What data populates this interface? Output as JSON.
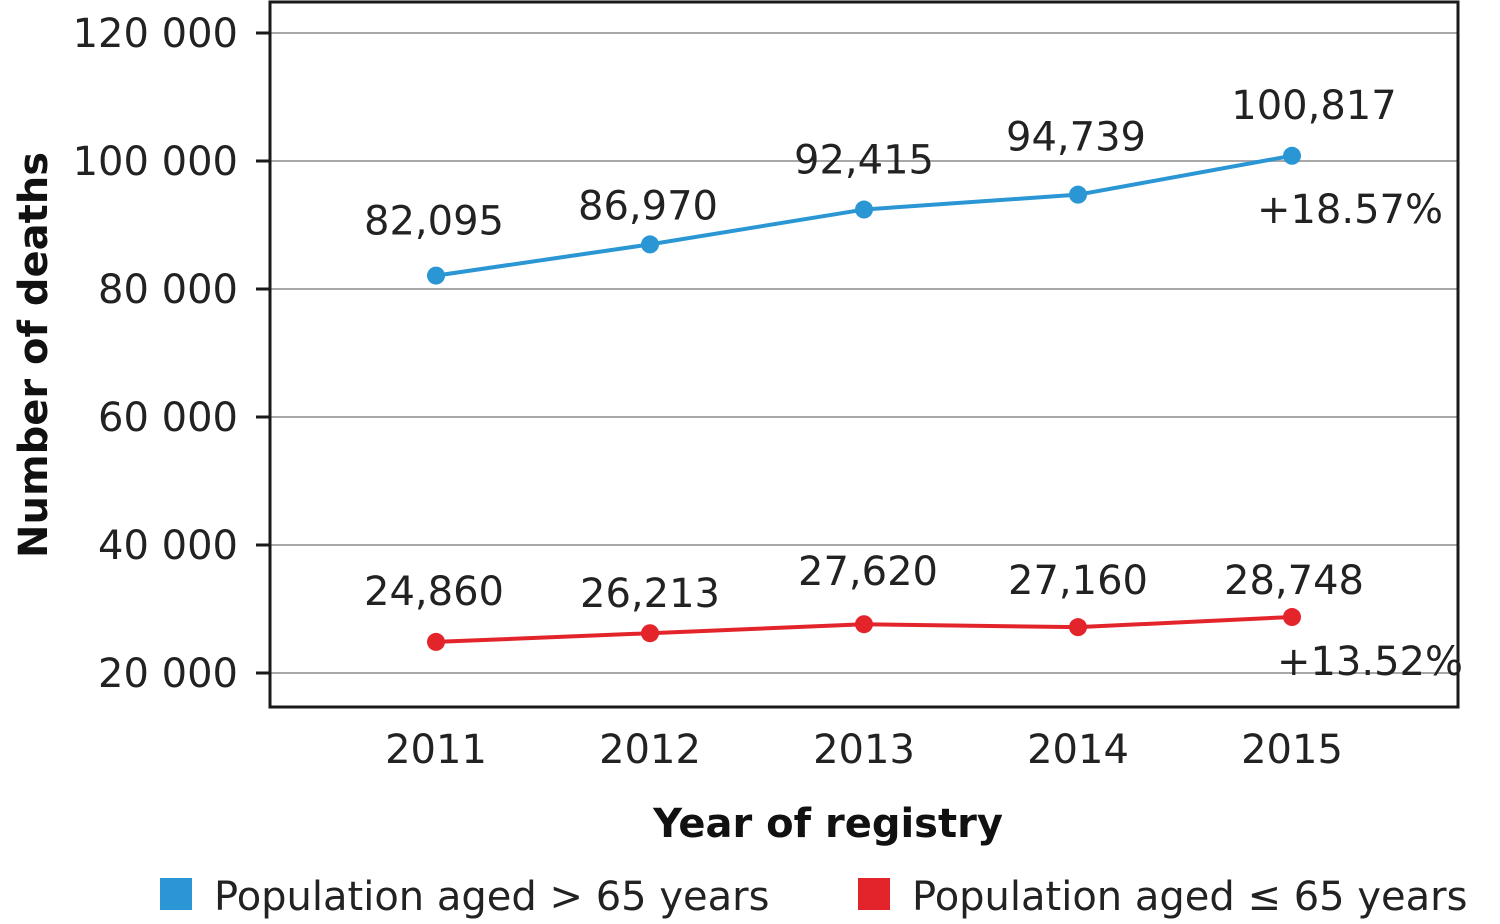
{
  "chart_data": {
    "type": "line",
    "title": "",
    "xlabel": "Year of registry",
    "ylabel": "Number of deaths",
    "categories": [
      "2011",
      "2012",
      "2013",
      "2014",
      "2015"
    ],
    "ylim": [
      15000,
      120000
    ],
    "yticks": [
      20000,
      40000,
      60000,
      80000,
      100000,
      120000
    ],
    "ytick_labels": [
      "20 000",
      "40 000",
      "60 000",
      "80 000",
      "100 000",
      "120 000"
    ],
    "grid": true,
    "legend_position": "bottom",
    "series": [
      {
        "name": "Population aged > 65 years",
        "color": "#2a97d4",
        "values": [
          82095,
          86970,
          92415,
          94739,
          100817
        ],
        "labels": [
          "82,095",
          "86,970",
          "92,415",
          "94,739",
          "100,817"
        ],
        "change_label": "+18.57%"
      },
      {
        "name": "Population aged ≤ 65 years",
        "color": "#e3242b",
        "values": [
          24860,
          26213,
          27620,
          27160,
          28748
        ],
        "labels": [
          "24,860",
          "26,213",
          "27,620",
          "27,160",
          "28,748"
        ],
        "change_label": "+13.52%"
      }
    ]
  }
}
